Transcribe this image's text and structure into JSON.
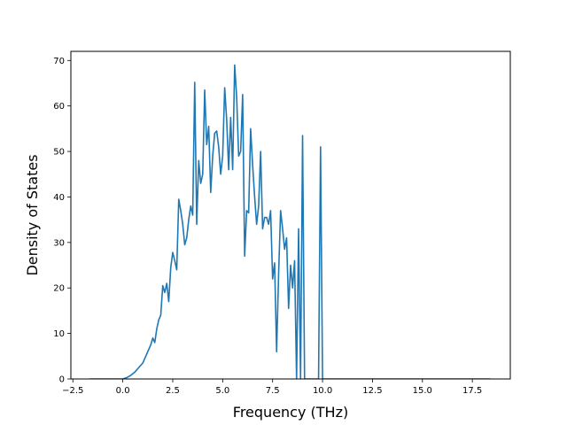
{
  "chart_data": {
    "type": "line",
    "title": "",
    "xlabel": "Frequency (THz)",
    "ylabel": "Density of States",
    "xlim": [
      -2.6,
      19.4
    ],
    "ylim": [
      0,
      72
    ],
    "xticks": [
      -2.5,
      0.0,
      2.5,
      5.0,
      7.5,
      10.0,
      12.5,
      15.0,
      17.5
    ],
    "xtick_labels": [
      "−2.5",
      "0.0",
      "2.5",
      "5.0",
      "7.5",
      "10.0",
      "12.5",
      "15.0",
      "17.5"
    ],
    "yticks": [
      0,
      10,
      20,
      30,
      40,
      50,
      60,
      70
    ],
    "ytick_labels": [
      "0",
      "10",
      "20",
      "30",
      "40",
      "50",
      "60",
      "70"
    ],
    "grid": false,
    "line_color": "#1f77b4",
    "series": [
      {
        "x": [
          -1.65,
          -1.0,
          -0.5,
          0.0,
          0.2,
          0.4,
          0.6,
          0.8,
          1.0,
          1.2,
          1.4,
          1.5,
          1.6,
          1.7,
          1.8,
          1.9,
          2.0,
          2.1,
          2.2,
          2.3,
          2.4,
          2.5,
          2.6,
          2.7,
          2.8,
          2.9,
          3.0,
          3.1,
          3.2,
          3.3,
          3.4,
          3.5,
          3.6,
          3.7,
          3.8,
          3.9,
          4.0,
          4.1,
          4.2,
          4.3,
          4.4,
          4.5,
          4.6,
          4.7,
          4.8,
          4.9,
          5.0,
          5.1,
          5.2,
          5.3,
          5.4,
          5.5,
          5.6,
          5.7,
          5.8,
          5.9,
          6.0,
          6.1,
          6.2,
          6.3,
          6.4,
          6.5,
          6.6,
          6.7,
          6.8,
          6.9,
          7.0,
          7.1,
          7.2,
          7.3,
          7.4,
          7.5,
          7.6,
          7.7,
          7.8,
          7.9,
          8.0,
          8.1,
          8.2,
          8.3,
          8.4,
          8.5,
          8.6,
          8.7,
          8.8,
          8.9,
          9.0,
          9.1,
          9.2,
          9.3,
          9.4,
          9.5,
          9.6,
          9.7,
          9.8,
          9.9,
          10.0,
          10.1,
          10.2,
          10.3,
          10.5,
          11.0,
          12.0,
          13.0,
          14.0,
          15.0,
          16.0,
          17.0,
          18.0,
          18.4
        ],
        "y": [
          0,
          0,
          0,
          0,
          0.3,
          0.8,
          1.5,
          2.5,
          3.5,
          5.5,
          7.5,
          9.0,
          8.0,
          11.0,
          13.0,
          14.0,
          20.5,
          19.0,
          21.0,
          17.0,
          24.5,
          27.8,
          26.0,
          24.0,
          39.5,
          37.0,
          34.0,
          29.5,
          31.0,
          35.0,
          38.0,
          36.0,
          65.2,
          34.0,
          48.0,
          43.0,
          45.0,
          63.5,
          51.5,
          55.5,
          41.0,
          49.0,
          54.0,
          54.5,
          51.0,
          45.0,
          49.0,
          64.0,
          57.0,
          46.0,
          57.5,
          46.0,
          69.0,
          62.0,
          49.0,
          50.0,
          62.5,
          27.0,
          37.0,
          36.5,
          55.0,
          47.0,
          40.0,
          34.0,
          38.0,
          50.0,
          33.0,
          35.5,
          35.5,
          34.0,
          37.0,
          22.0,
          25.5,
          6.0,
          23.0,
          37.0,
          33.0,
          28.5,
          31.0,
          15.5,
          25.0,
          20.0,
          26.0,
          0,
          33.0,
          0,
          53.5,
          0,
          0,
          0,
          0,
          0,
          0,
          0,
          0,
          51.0,
          0,
          0,
          0,
          0,
          0,
          0,
          0,
          0,
          0,
          0,
          0,
          0,
          0,
          0
        ]
      }
    ]
  }
}
